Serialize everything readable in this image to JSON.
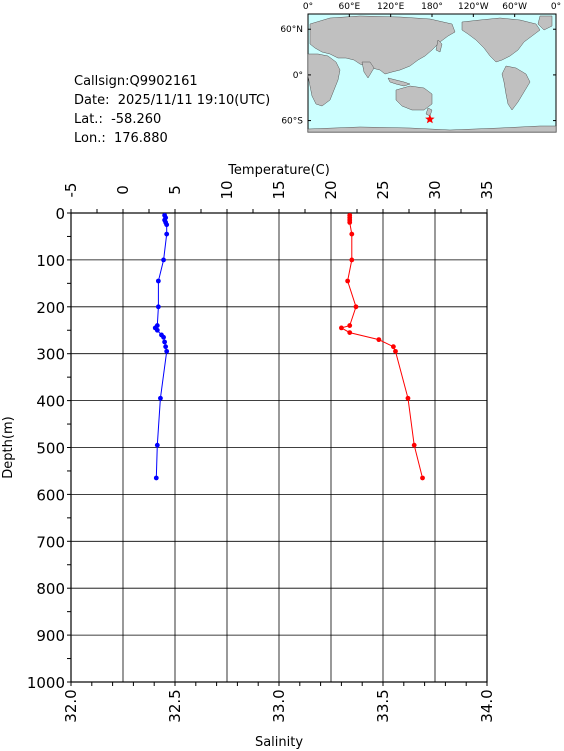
{
  "station": {
    "callsign": "Callsign:Q9902161",
    "date": "Date:  2025/11/11 19:10(UTC)",
    "lat": "Lat.:  -58.260",
    "lon": "Lon.:  176.880"
  },
  "map": {
    "lon_labels": [
      "0°",
      "60°E",
      "120°E",
      "180°",
      "120°W",
      "60°W",
      "0°"
    ],
    "lat_labels": [
      "60°N",
      "0°",
      "60°S"
    ],
    "ocean_color": "#ccffff",
    "land_color": "#c0c0c0",
    "marker_color": "#ff0000",
    "marker_lon": 176.88,
    "marker_lat": -58.26
  },
  "chart_data": {
    "type": "line",
    "ylabel": "Depth(m)",
    "ylim": [
      1000,
      0
    ],
    "yticks": [
      "0",
      "100",
      "200",
      "300",
      "400",
      "500",
      "600",
      "700",
      "800",
      "900",
      "1000"
    ],
    "top_axis": {
      "label": "Temperature(C)",
      "range": [
        -5,
        35
      ],
      "ticks": [
        "-5",
        "0",
        "5",
        "10",
        "15",
        "20",
        "25",
        "30",
        "35"
      ]
    },
    "bottom_axis": {
      "label": "Salinity",
      "range": [
        32.0,
        34.0
      ],
      "ticks": [
        "32.0",
        "32.5",
        "33.0",
        "33.5",
        "34.0"
      ]
    },
    "grid": true,
    "series": [
      {
        "axis": "top",
        "color": "#0000ff",
        "points": [
          [
            4.0,
            5
          ],
          [
            4.1,
            10
          ],
          [
            4.0,
            15
          ],
          [
            4.1,
            20
          ],
          [
            4.2,
            25
          ],
          [
            4.2,
            45
          ],
          [
            3.9,
            100
          ],
          [
            3.4,
            145
          ],
          [
            3.4,
            200
          ],
          [
            3.3,
            240
          ],
          [
            3.1,
            245
          ],
          [
            3.3,
            250
          ],
          [
            3.7,
            260
          ],
          [
            3.9,
            265
          ],
          [
            4.0,
            275
          ],
          [
            4.1,
            285
          ],
          [
            4.2,
            295
          ],
          [
            3.6,
            395
          ],
          [
            3.3,
            495
          ],
          [
            3.2,
            565
          ]
        ]
      },
      {
        "axis": "bottom",
        "color": "#ff0000",
        "points": [
          [
            33.34,
            5
          ],
          [
            33.34,
            10
          ],
          [
            33.34,
            15
          ],
          [
            33.34,
            20
          ],
          [
            33.35,
            45
          ],
          [
            33.35,
            100
          ],
          [
            33.33,
            145
          ],
          [
            33.37,
            200
          ],
          [
            33.34,
            240
          ],
          [
            33.3,
            245
          ],
          [
            33.34,
            255
          ],
          [
            33.48,
            270
          ],
          [
            33.55,
            285
          ],
          [
            33.56,
            295
          ],
          [
            33.62,
            395
          ],
          [
            33.65,
            495
          ],
          [
            33.69,
            565
          ]
        ]
      }
    ]
  }
}
